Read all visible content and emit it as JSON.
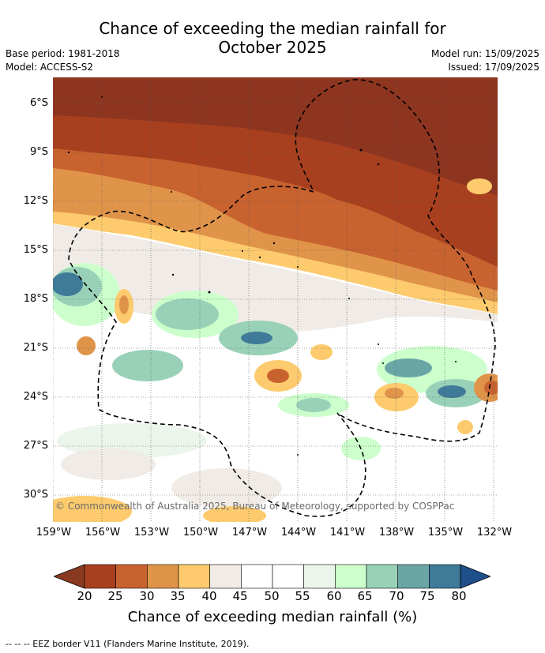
{
  "title_line1": "Chance of exceeding the median rainfall for",
  "title_line2": "October 2025",
  "base_period": "Base period: 1981-2018",
  "model": "Model: ACCESS-S2",
  "model_run": "Model run: 15/09/2025",
  "issued": "Issued: 17/09/2025",
  "copyright": "© Commonwealth of Australia 2025, Bureau of Meteorology, supported by COSPPac",
  "lat_ticks": [
    "6°S",
    "9°S",
    "12°S",
    "15°S",
    "18°S",
    "21°S",
    "24°S",
    "27°S",
    "30°S"
  ],
  "lon_ticks": [
    "159°W",
    "156°W",
    "153°W",
    "150°W",
    "147°W",
    "144°W",
    "141°W",
    "138°W",
    "135°W",
    "132°W"
  ],
  "colorbar": {
    "ticks": [
      "20",
      "25",
      "30",
      "35",
      "40",
      "45",
      "50",
      "55",
      "60",
      "65",
      "70",
      "75",
      "80"
    ],
    "colors": [
      "#a8401f",
      "#c8622f",
      "#e0944a",
      "#fdcb6e",
      "#f0ebe6",
      "#ffffff",
      "#ffffff",
      "#ebf5eb",
      "#ccffcc",
      "#99d1b8",
      "#6ba6a6",
      "#3f7a99"
    ],
    "under_color": "#8b3a22",
    "over_color": "#1f4f8a",
    "label": "Chance of exceeding median rainfall (%)"
  },
  "footer": "--  --  -- EEZ border V11 (Flanders Marine Institute, 2019)."
}
